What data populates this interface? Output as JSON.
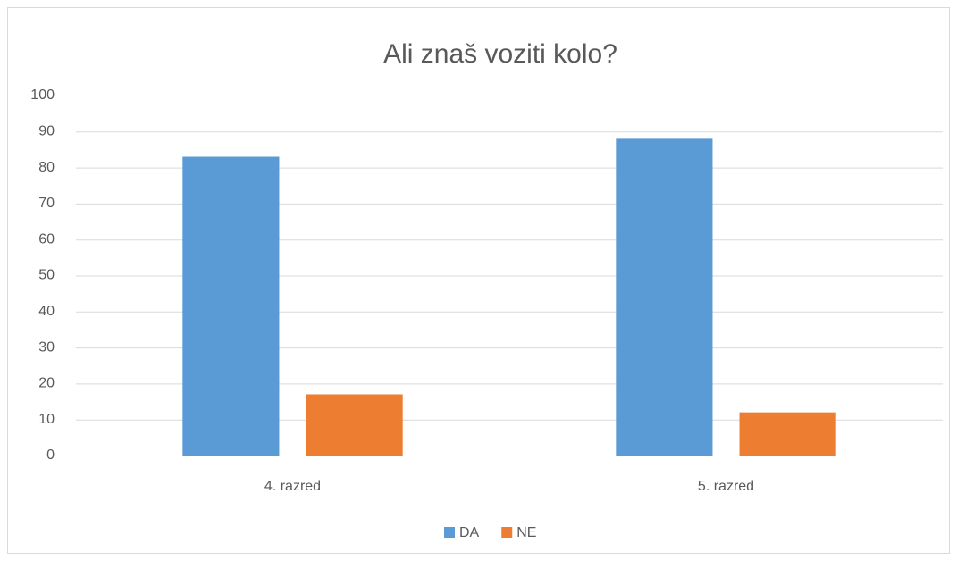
{
  "chart_data": {
    "type": "bar",
    "title": "Ali znaš voziti kolo?",
    "categories": [
      "4. razred",
      "5. razred"
    ],
    "series": [
      {
        "name": "DA",
        "color": "#5b9bd5",
        "values": [
          83,
          88
        ]
      },
      {
        "name": "NE",
        "color": "#ed7d31",
        "values": [
          17,
          12
        ]
      }
    ],
    "ylim": [
      0,
      100
    ],
    "yticks": [
      0,
      10,
      20,
      30,
      40,
      50,
      60,
      70,
      80,
      90,
      100
    ],
    "grid": true,
    "legend": "bottom"
  }
}
